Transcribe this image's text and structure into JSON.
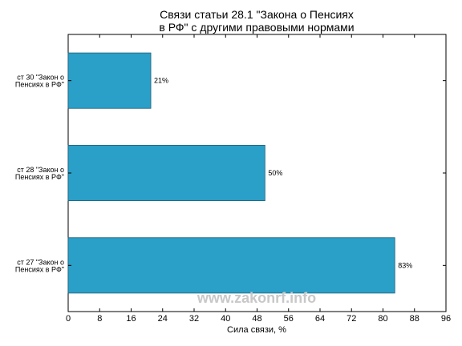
{
  "chart_data": {
    "type": "bar",
    "orientation": "horizontal",
    "title": [
      "Связи статьи 28.1 \"Закона о Пенсиях",
      "в РФ\" с другими правовыми нормами"
    ],
    "xlabel": "Сила связи, %",
    "ylabel": "",
    "categories": [
      [
        "ст 30 \"Закон о",
        "Пенсиях в РФ\""
      ],
      [
        "ст 28 \"Закон о",
        "Пенсиях в РФ\""
      ],
      [
        "ст 27 \"Закон о",
        "Пенсиях в РФ\""
      ]
    ],
    "values": [
      21,
      50,
      83
    ],
    "data_labels": [
      "21%",
      "50%",
      "83%"
    ],
    "xlim": [
      0,
      96
    ],
    "xticks": [
      0,
      8,
      16,
      24,
      32,
      40,
      48,
      56,
      64,
      72,
      80,
      88,
      96
    ],
    "grid": false,
    "bar_color": "#2a9fc8",
    "bar_edge_color": "#1a5f78"
  },
  "watermark": "www.zakonrf.info"
}
